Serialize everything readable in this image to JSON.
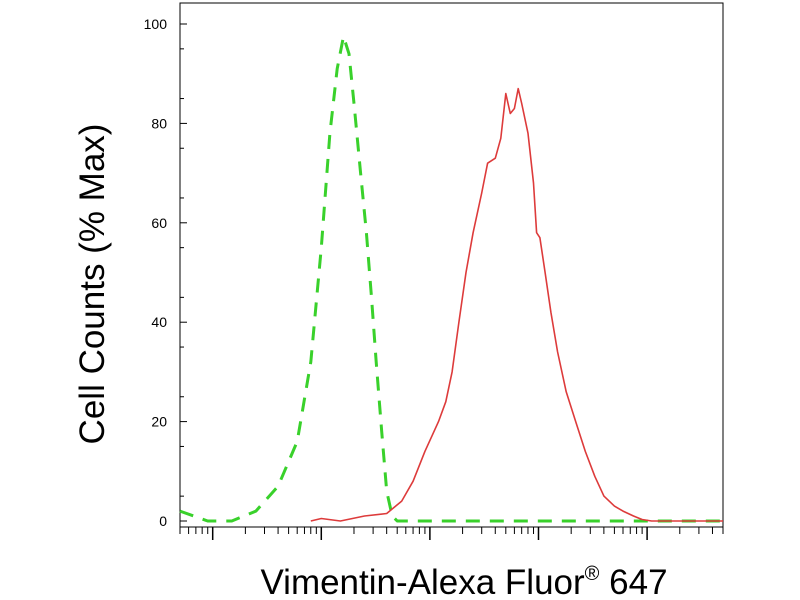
{
  "chart_data": {
    "type": "line",
    "title": "",
    "xlabel": "Vimentin-Alexa Fluor",
    "xlabel_sup": "®",
    "xlabel_suffix": " 647",
    "ylabel": "Cell Counts (% Max)",
    "x_scale": "log",
    "xlim": [
      0.5,
      50000
    ],
    "ylim": [
      0,
      100
    ],
    "y_ticks": [
      0,
      20,
      40,
      60,
      80,
      100
    ],
    "grid": false,
    "legend": "none",
    "series": [
      {
        "color": "#39d12b",
        "dash": "dashed",
        "points": [
          [
            0.5,
            2
          ],
          [
            0.9,
            0
          ],
          [
            1.5,
            0
          ],
          [
            2.5,
            2
          ],
          [
            4,
            7
          ],
          [
            6,
            16
          ],
          [
            8,
            32
          ],
          [
            10,
            55
          ],
          [
            12,
            78
          ],
          [
            14,
            91
          ],
          [
            16,
            97.5
          ],
          [
            18,
            94
          ],
          [
            20,
            84
          ],
          [
            23,
            70
          ],
          [
            26,
            58
          ],
          [
            29,
            45
          ],
          [
            32,
            32
          ],
          [
            36,
            18
          ],
          [
            40,
            6
          ],
          [
            45,
            1
          ],
          [
            50,
            0
          ],
          [
            60,
            0
          ],
          [
            50000,
            0
          ]
        ]
      },
      {
        "color": "#dd3b3b",
        "dash": "solid",
        "points": [
          [
            8,
            0
          ],
          [
            10,
            0.5
          ],
          [
            15,
            0
          ],
          [
            25,
            1
          ],
          [
            40,
            1.5
          ],
          [
            55,
            4
          ],
          [
            70,
            8
          ],
          [
            90,
            14
          ],
          [
            120,
            20
          ],
          [
            140,
            24
          ],
          [
            160,
            30
          ],
          [
            185,
            40
          ],
          [
            215,
            50
          ],
          [
            250,
            58
          ],
          [
            300,
            66
          ],
          [
            340,
            72
          ],
          [
            400,
            73
          ],
          [
            450,
            77
          ],
          [
            500,
            86
          ],
          [
            550,
            82
          ],
          [
            600,
            83
          ],
          [
            650,
            87
          ],
          [
            700,
            84
          ],
          [
            800,
            78
          ],
          [
            900,
            68
          ],
          [
            960,
            58
          ],
          [
            1030,
            57
          ],
          [
            1150,
            50
          ],
          [
            1300,
            42
          ],
          [
            1500,
            34
          ],
          [
            1800,
            26
          ],
          [
            2200,
            20
          ],
          [
            2700,
            14
          ],
          [
            3300,
            9
          ],
          [
            4000,
            5
          ],
          [
            5000,
            3
          ],
          [
            6000,
            2
          ],
          [
            7500,
            1
          ],
          [
            9000,
            0.3
          ],
          [
            11000,
            0
          ],
          [
            50000,
            0
          ]
        ]
      }
    ]
  }
}
